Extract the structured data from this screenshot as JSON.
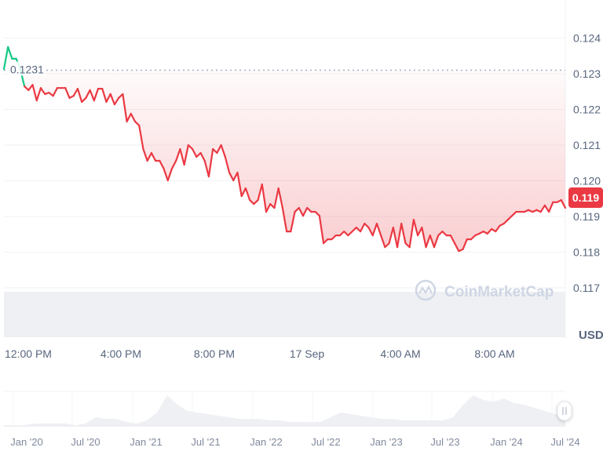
{
  "chart_data": {
    "type": "line",
    "currency": "USD",
    "reference_price": 0.1231,
    "reference_label": "0.1231",
    "current_price_label": "0.119",
    "ylim": [
      0.1163,
      0.1249
    ],
    "y_ticks": [
      "0.124",
      "0.123",
      "0.122",
      "0.121",
      "0.120",
      "0.119",
      "0.118",
      "0.117"
    ],
    "x_ticks": [
      "12:00 PM",
      "4:00 PM",
      "8:00 PM",
      "17 Sep",
      "4:00 AM",
      "8:00 AM"
    ],
    "colors": {
      "up": "#16c784",
      "down": "#ea3943",
      "grid": "#eff2f5",
      "volume": "#eef0f3",
      "axis_text": "#58667e"
    },
    "prices": [
      0.12313,
      0.12375,
      0.12342,
      0.12342,
      0.12313,
      0.12265,
      0.12254,
      0.12269,
      0.12225,
      0.1226,
      0.12243,
      0.12247,
      0.12238,
      0.1226,
      0.1226,
      0.1226,
      0.12232,
      0.12238,
      0.12258,
      0.12221,
      0.12232,
      0.12254,
      0.12225,
      0.12258,
      0.12258,
      0.12221,
      0.12243,
      0.12214,
      0.12232,
      0.12243,
      0.12166,
      0.12188,
      0.12166,
      0.12155,
      0.12089,
      0.12056,
      0.12078,
      0.12056,
      0.12056,
      0.12034,
      0.12001,
      0.12034,
      0.12056,
      0.12089,
      0.12045,
      0.121,
      0.12089,
      0.12067,
      0.12078,
      0.12056,
      0.12012,
      0.12089,
      0.12078,
      0.121,
      0.12067,
      0.12023,
      0.12001,
      0.12023,
      0.11957,
      0.11979,
      0.11946,
      0.11935,
      0.11946,
      0.1199,
      0.11913,
      0.11935,
      0.11924,
      0.11979,
      0.11924,
      0.11858,
      0.11858,
      0.11913,
      0.11924,
      0.11902,
      0.11924,
      0.11913,
      0.11913,
      0.11902,
      0.11825,
      0.11836,
      0.11836,
      0.11847,
      0.11847,
      0.11858,
      0.11847,
      0.11858,
      0.11869,
      0.11858,
      0.1188,
      0.11869,
      0.11847,
      0.1188,
      0.11847,
      0.11814,
      0.11825,
      0.11869,
      0.11814,
      0.1188,
      0.11825,
      0.11814,
      0.11891,
      0.11847,
      0.11869,
      0.11814,
      0.11847,
      0.11814,
      0.11847,
      0.11858,
      0.11847,
      0.11847,
      0.11825,
      0.11803,
      0.11808,
      0.11836,
      0.11836,
      0.11847,
      0.11852,
      0.11858,
      0.11852,
      0.11865,
      0.11858,
      0.11874,
      0.1188,
      0.11891,
      0.11902,
      0.11913,
      0.11913,
      0.11913,
      0.11918,
      0.11913,
      0.11918,
      0.11913,
      0.11931,
      0.11913,
      0.1194,
      0.1194,
      0.11946,
      0.11924
    ]
  },
  "navigator": {
    "x_ticks": [
      "Jan '20",
      "Jul '20",
      "Jan '21",
      "Jul '21",
      "Jan '22",
      "Jul '22",
      "Jan '23",
      "Jul '23",
      "Jan '24",
      "Jul '24"
    ],
    "values": [
      1,
      1,
      1,
      2,
      2,
      2,
      2,
      1,
      2,
      6,
      5,
      5,
      3,
      2,
      4,
      9,
      20,
      14,
      10,
      9,
      8,
      7,
      6,
      5,
      5,
      5,
      4,
      4,
      3,
      3,
      3,
      3,
      6,
      9,
      8,
      7,
      6,
      5,
      5,
      4,
      4,
      4,
      4,
      4,
      6,
      14,
      20,
      17,
      16,
      18,
      15,
      14,
      12,
      10,
      8,
      9
    ],
    "handle_icon": "grip-lines-icon"
  },
  "watermark": "CoinMarketCap"
}
